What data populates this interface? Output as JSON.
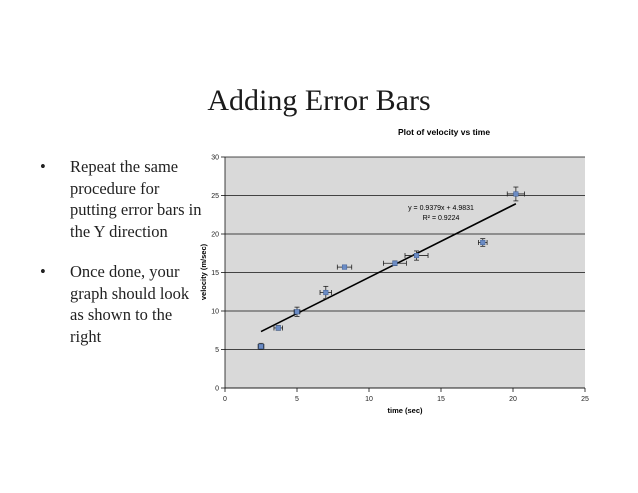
{
  "slide": {
    "title": "Adding Error Bars",
    "bullet_glyph": "•",
    "bullets": [
      "Repeat the same procedure for putting error bars in the Y direction",
      "Once done, your graph should look as shown to the right"
    ]
  },
  "chart_data": {
    "type": "scatter",
    "title": "Plot of velocity vs time",
    "xlabel": "time (sec)",
    "ylabel": "velocity (m/sec)",
    "xlim": [
      0,
      25
    ],
    "ylim": [
      0,
      30
    ],
    "xticks": [
      0,
      5,
      10,
      15,
      20,
      25
    ],
    "yticks": [
      0,
      5,
      10,
      15,
      20,
      25,
      30
    ],
    "grid": "horizontal",
    "plot_background": "#d9d9d9",
    "point_color": "#6c8cc4",
    "points": [
      {
        "x": 2.5,
        "y": 5.4,
        "xerr": 0.2,
        "yerr": 0.4
      },
      {
        "x": 3.7,
        "y": 7.8,
        "xerr": 0.3,
        "yerr": 0.3
      },
      {
        "x": 5.0,
        "y": 9.9,
        "xerr": 0.2,
        "yerr": 0.6
      },
      {
        "x": 7.0,
        "y": 12.4,
        "xerr": 0.4,
        "yerr": 0.8
      },
      {
        "x": 8.3,
        "y": 15.7,
        "xerr": 0.5,
        "yerr": 0.2
      },
      {
        "x": 11.8,
        "y": 16.2,
        "xerr": 0.8,
        "yerr": 0.3
      },
      {
        "x": 13.3,
        "y": 17.2,
        "xerr": 0.8,
        "yerr": 0.6
      },
      {
        "x": 17.9,
        "y": 18.9,
        "xerr": 0.3,
        "yerr": 0.5
      },
      {
        "x": 20.2,
        "y": 25.2,
        "xerr": 0.6,
        "yerr": 0.9
      }
    ],
    "trendline": {
      "slope": 0.9379,
      "intercept": 4.9831,
      "x_from": 2.5,
      "x_to": 20.2
    },
    "annotations": [
      "y = 0.9379x + 4.9831",
      "R² = 0.9224"
    ]
  }
}
